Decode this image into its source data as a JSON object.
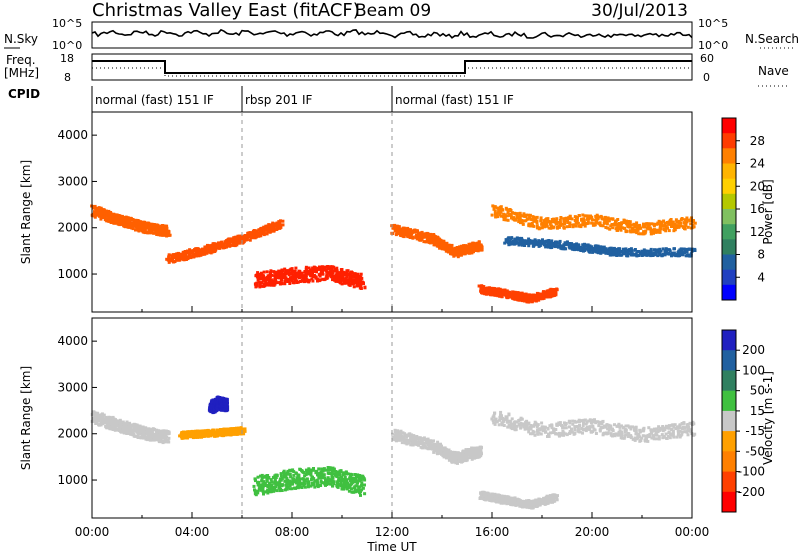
{
  "header": {
    "title": "Christmas Valley East (fitACF)",
    "beam": "Beam 09",
    "date": "30/Jul/2013"
  },
  "noise_panel": {
    "left_label": "N.Sky",
    "right_label": "N.Search",
    "left_ticks": [
      "10^5",
      "10^0"
    ],
    "right_ticks": [
      "10^5",
      "10^0"
    ]
  },
  "freq_panel": {
    "left_label_1": "Freq.",
    "left_label_2": "[MHz]",
    "right_label": "Nave",
    "left_ticks": [
      "18",
      "8"
    ],
    "right_ticks": [
      "60",
      "0"
    ]
  },
  "cpid": {
    "label": "CPID",
    "segments": [
      {
        "label": "normal (fast) 151 IF",
        "start": 0,
        "end": 6
      },
      {
        "label": "rbsp 201 IF",
        "start": 6,
        "end": 12
      },
      {
        "label": "normal (fast) 151 IF",
        "start": 12,
        "end": 24
      }
    ]
  },
  "power_colorbar": {
    "title": "Power [dB]",
    "labels": [
      "28",
      "24",
      "20",
      "16",
      "12",
      "8",
      "4"
    ],
    "colors": [
      "#ff0000",
      "#ff3c00",
      "#ff8000",
      "#ffb400",
      "#ffd000",
      "#b4c800",
      "#80c060",
      "#40a060",
      "#308060",
      "#2060a0",
      "#2040c0",
      "#0000ff"
    ]
  },
  "velocity_colorbar": {
    "title": "Velocity [m s-1]",
    "labels": [
      "200",
      "100",
      "50",
      "15",
      "-15",
      "-50",
      "-100",
      "-200"
    ],
    "colors": [
      "#2020c0",
      "#2060a0",
      "#308060",
      "#40c040",
      "#c8c8c8",
      "#ffa000",
      "#ff8000",
      "#ff4000",
      "#ff0000"
    ]
  },
  "chart_data": [
    {
      "type": "heatmap",
      "name": "Power",
      "ylabel": "Slant Range [km]",
      "xlabel": "Time UT",
      "x_ticks": [
        "00:00",
        "04:00",
        "08:00",
        "12:00",
        "16:00",
        "20:00",
        "00:00"
      ],
      "y_ticks": [
        "1000",
        "2000",
        "3000",
        "4000"
      ],
      "xlim": [
        0,
        24
      ],
      "ylim": [
        180,
        4500
      ],
      "bands": [
        {
          "t": [
            0.0,
            1.0,
            2.0,
            3.0
          ],
          "r": [
            2400,
            2200,
            2050,
            1950
          ],
          "w": 220,
          "color": "#ff6000"
        },
        {
          "t": [
            3.0,
            4.5,
            6.0,
            7.5
          ],
          "r": [
            1350,
            1550,
            1800,
            2100
          ],
          "w": 180,
          "color": "#ff5000"
        },
        {
          "t": [
            6.5,
            8.0,
            9.5,
            10.8
          ],
          "r": [
            900,
            1000,
            1050,
            850
          ],
          "w": 320,
          "color": "#ff2000"
        },
        {
          "t": [
            12.0,
            13.5,
            14.5,
            15.5
          ],
          "r": [
            2000,
            1800,
            1500,
            1650
          ],
          "w": 200,
          "color": "#ff6000"
        },
        {
          "t": [
            15.5,
            16.5,
            17.5,
            18.5
          ],
          "r": [
            700,
            600,
            500,
            650
          ],
          "w": 160,
          "color": "#ff4000"
        },
        {
          "t": [
            16.0,
            18.0,
            20.0,
            22.0,
            24.0
          ],
          "r": [
            2400,
            2100,
            2200,
            2000,
            2150
          ],
          "w": 260,
          "color": "#ff8000"
        },
        {
          "t": [
            16.5,
            19.0,
            21.0,
            24.0
          ],
          "r": [
            1750,
            1650,
            1500,
            1500
          ],
          "w": 160,
          "color": "#2060a0"
        }
      ]
    },
    {
      "type": "heatmap",
      "name": "Velocity",
      "ylabel": "Slant Range [km]",
      "xlabel": "Time UT",
      "x_ticks": [
        "00:00",
        "04:00",
        "08:00",
        "12:00",
        "16:00",
        "20:00",
        "00:00"
      ],
      "y_ticks": [
        "1000",
        "2000",
        "3000",
        "4000"
      ],
      "xlim": [
        0,
        24
      ],
      "ylim": [
        180,
        4500
      ],
      "bands": [
        {
          "t": [
            0.0,
            1.0,
            2.0,
            3.0
          ],
          "r": [
            2400,
            2200,
            2050,
            1950
          ],
          "w": 260,
          "color": "#c8c8c8"
        },
        {
          "t": [
            6.5,
            8.0,
            9.5,
            10.8
          ],
          "r": [
            900,
            1050,
            1100,
            900
          ],
          "w": 420,
          "color": "#40c040"
        },
        {
          "t": [
            4.7,
            5.0,
            5.3
          ],
          "r": [
            2600,
            2700,
            2650
          ],
          "w": 260,
          "color": "#2020c0"
        },
        {
          "t": [
            12.0,
            13.5,
            14.5,
            15.5
          ],
          "r": [
            2000,
            1800,
            1500,
            1650
          ],
          "w": 240,
          "color": "#c8c8c8"
        },
        {
          "t": [
            16.0,
            18.0,
            20.0,
            22.0,
            24.0
          ],
          "r": [
            2400,
            2100,
            2200,
            2000,
            2150
          ],
          "w": 300,
          "color": "#c8c8c8"
        },
        {
          "t": [
            15.5,
            16.5,
            17.5,
            18.5
          ],
          "r": [
            700,
            600,
            500,
            650
          ],
          "w": 160,
          "color": "#c8c8c8"
        },
        {
          "t": [
            3.5,
            5.0,
            6.0
          ],
          "r": [
            2000,
            2050,
            2100
          ],
          "w": 140,
          "color": "#ffa000"
        }
      ]
    }
  ]
}
